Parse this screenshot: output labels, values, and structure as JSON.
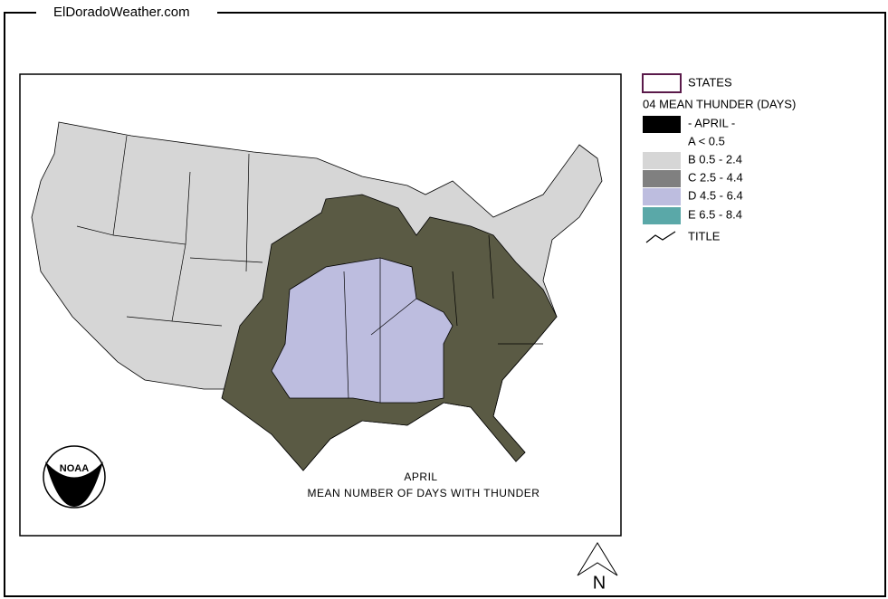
{
  "header": {
    "site": "ElDoradoWeather.com"
  },
  "legend": {
    "items": [
      {
        "label": "STATES",
        "swatch": "outline",
        "color": "#5a1a4a"
      },
      {
        "label": "04 MEAN THUNDER (DAYS)"
      },
      {
        "label": "- APRIL -",
        "swatch": "fill",
        "color": "#000000"
      },
      {
        "label": "A < 0.5"
      },
      {
        "label": "B 0.5 - 2.4",
        "swatch": "fill",
        "color": "#d6d6d6"
      },
      {
        "label": "C 2.5 - 4.4",
        "swatch": "fill",
        "color": "#808080"
      },
      {
        "label": "D 4.5 - 6.4",
        "swatch": "fill",
        "color": "#bdbddf"
      },
      {
        "label": "E 6.5 - 8.4",
        "swatch": "fill",
        "color": "#5aa8a8"
      },
      {
        "label": "TITLE",
        "swatch": "line"
      }
    ]
  },
  "map": {
    "caption": [
      "APRIL",
      "MEAN NUMBER OF DAYS WITH THUNDER"
    ],
    "logo": "NOAA",
    "north": "N"
  }
}
